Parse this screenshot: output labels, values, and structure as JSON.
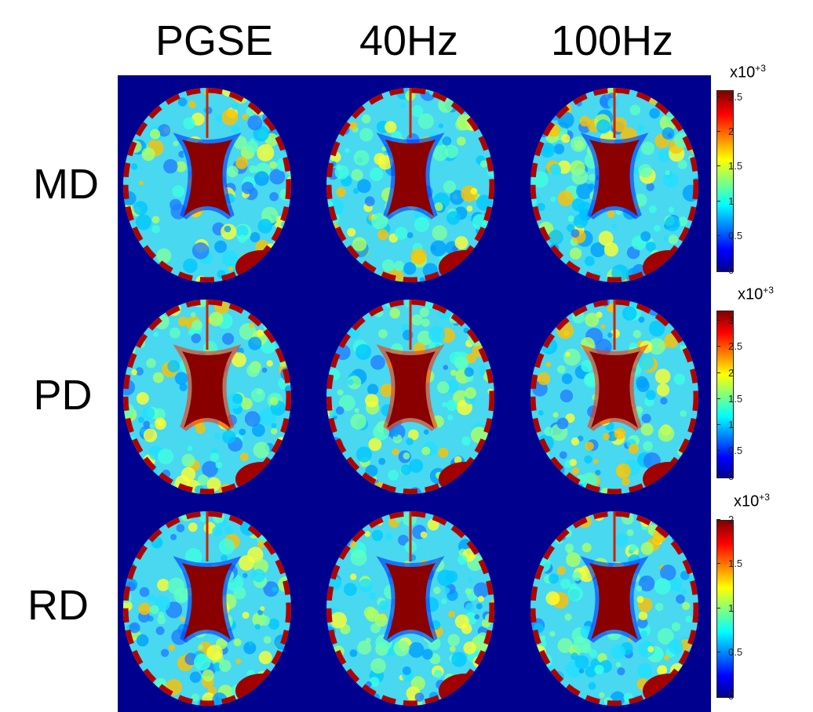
{
  "columns": [
    "PGSE",
    "40Hz",
    "100Hz"
  ],
  "rows": [
    "MD",
    "PD",
    "RD"
  ],
  "colorbars": [
    {
      "exponent_base": "x10",
      "exponent": "+3",
      "ticks": [
        "2.5",
        "2",
        "1.5",
        "1",
        "0.5",
        "0"
      ],
      "max": 2.6
    },
    {
      "exponent_base": "x10",
      "exponent": "+3",
      "ticks": [
        "3",
        "2.5",
        "2",
        "1.5",
        "1",
        "0.5",
        "0"
      ],
      "max": 3.2
    },
    {
      "exponent_base": "x10",
      "exponent": "+3",
      "ticks": [
        "2",
        "1.5",
        "1",
        "0.5",
        "0"
      ],
      "max": 2.0
    }
  ],
  "colormap": "jet",
  "background_color": "#00008f"
}
